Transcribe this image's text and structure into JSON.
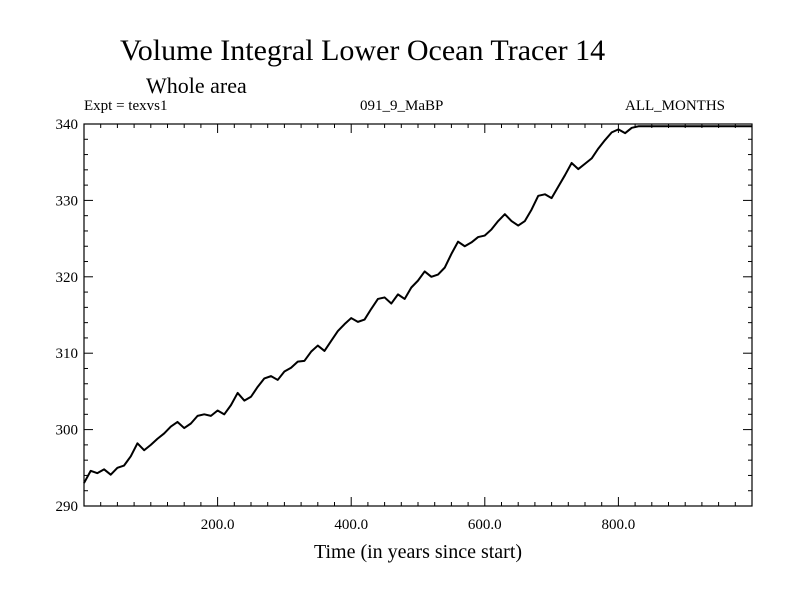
{
  "chart_data": {
    "type": "line",
    "title": "Volume Integral Lower Ocean Tracer 14",
    "subtitle": "Whole area",
    "header_left": "Expt = texvs1",
    "header_center": "091_9_MaBP",
    "header_right": "ALL_MONTHS",
    "xlabel": "Time (in years since start)",
    "ylabel": "",
    "xlim": [
      0,
      1000
    ],
    "ylim": [
      290,
      340
    ],
    "xticks": [
      200,
      400,
      600,
      800
    ],
    "xtick_labels": [
      "200.0",
      "400.0",
      "600.0",
      "800.0"
    ],
    "yticks": [
      290,
      300,
      310,
      320,
      330,
      340
    ],
    "ytick_labels": [
      "290",
      "300",
      "310",
      "320",
      "330",
      "340"
    ],
    "series": [
      {
        "name": "Volume Integral Lower Ocean Tracer 14",
        "x": [
          0,
          10,
          20,
          30,
          40,
          50,
          60,
          70,
          80,
          90,
          100,
          110,
          120,
          130,
          140,
          150,
          160,
          170,
          180,
          190,
          200,
          210,
          220,
          230,
          240,
          250,
          260,
          270,
          280,
          290,
          300,
          310,
          320,
          330,
          340,
          350,
          360,
          370,
          380,
          390,
          400,
          410,
          420,
          430,
          440,
          450,
          460,
          470,
          480,
          490,
          500,
          510,
          520,
          530,
          540,
          550,
          560,
          570,
          580,
          590,
          600,
          610,
          620,
          630,
          640,
          650,
          660,
          670,
          680,
          690,
          700,
          710,
          720,
          730,
          740,
          750,
          760,
          770,
          780,
          790,
          800,
          810,
          820,
          830,
          840,
          850,
          860,
          870,
          880,
          890,
          900,
          910,
          920,
          930,
          940,
          950,
          960,
          970,
          980,
          990,
          1000
        ],
        "y": [
          293.0,
          294.6,
          294.3,
          294.8,
          294.1,
          295.0,
          295.3,
          296.5,
          298.2,
          297.3,
          298.0,
          298.8,
          299.5,
          300.4,
          301.0,
          300.2,
          300.8,
          301.8,
          302.0,
          301.8,
          302.5,
          302.0,
          303.2,
          304.8,
          303.8,
          304.3,
          305.6,
          306.7,
          307.0,
          306.5,
          307.6,
          308.1,
          308.9,
          309.0,
          310.2,
          311.0,
          310.3,
          311.6,
          312.9,
          313.8,
          314.6,
          314.1,
          314.4,
          315.8,
          317.1,
          317.3,
          316.5,
          317.7,
          317.1,
          318.6,
          319.5,
          320.7,
          320.0,
          320.3,
          321.2,
          323.0,
          324.6,
          324.0,
          324.5,
          325.2,
          325.4,
          326.2,
          327.3,
          328.2,
          327.3,
          326.7,
          327.3,
          328.8,
          330.6,
          330.8,
          330.3,
          331.8,
          333.3,
          334.9,
          334.1,
          334.8,
          335.5,
          336.8,
          337.9,
          338.9,
          339.3,
          338.8,
          339.5,
          339.7,
          339.7,
          339.7,
          339.7,
          339.7,
          339.7,
          339.7,
          339.7,
          339.7,
          339.7,
          339.7,
          339.7,
          339.7,
          339.7,
          339.7,
          339.7,
          339.7,
          339.7
        ]
      }
    ]
  }
}
